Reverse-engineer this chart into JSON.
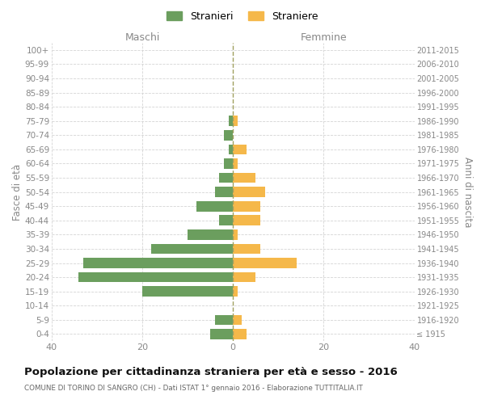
{
  "age_groups": [
    "100+",
    "95-99",
    "90-94",
    "85-89",
    "80-84",
    "75-79",
    "70-74",
    "65-69",
    "60-64",
    "55-59",
    "50-54",
    "45-49",
    "40-44",
    "35-39",
    "30-34",
    "25-29",
    "20-24",
    "15-19",
    "10-14",
    "5-9",
    "0-4"
  ],
  "birth_years": [
    "≤ 1915",
    "1916-1920",
    "1921-1925",
    "1926-1930",
    "1931-1935",
    "1936-1940",
    "1941-1945",
    "1946-1950",
    "1951-1955",
    "1956-1960",
    "1961-1965",
    "1966-1970",
    "1971-1975",
    "1976-1980",
    "1981-1985",
    "1986-1990",
    "1991-1995",
    "1996-2000",
    "2001-2005",
    "2006-2010",
    "2011-2015"
  ],
  "males": [
    0,
    0,
    0,
    0,
    0,
    1,
    2,
    1,
    2,
    3,
    4,
    8,
    3,
    10,
    18,
    33,
    34,
    20,
    0,
    4,
    5
  ],
  "females": [
    0,
    0,
    0,
    0,
    0,
    1,
    0,
    3,
    1,
    5,
    7,
    6,
    6,
    1,
    6,
    14,
    5,
    1,
    0,
    2,
    3
  ],
  "male_color": "#6b9e5e",
  "female_color": "#f5b84a",
  "center_line_color": "#a0a060",
  "grid_color": "#d5d5d5",
  "bg_color": "#ffffff",
  "title": "Popolazione per cittadinanza straniera per età e sesso - 2016",
  "subtitle": "COMUNE DI TORINO DI SANGRO (CH) - Dati ISTAT 1° gennaio 2016 - Elaborazione TUTTITALIA.IT",
  "left_header": "Maschi",
  "right_header": "Femmine",
  "yaxis_label": "Fasce di età",
  "right_yaxis_label": "Anni di nascita",
  "legend_male": "Stranieri",
  "legend_female": "Straniere",
  "xlim": 40
}
